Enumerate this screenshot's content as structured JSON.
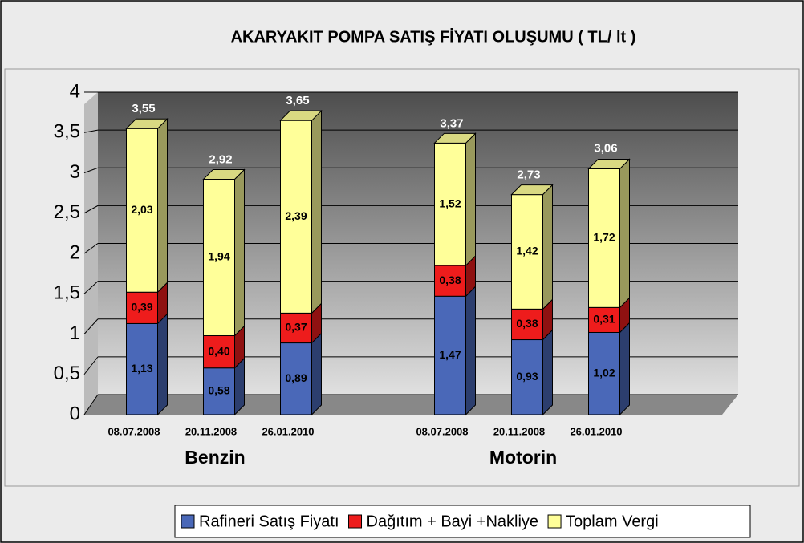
{
  "chart_data": {
    "type": "bar3d_stacked",
    "title": "AKARYAKIT POMPA SATIŞ FİYATI OLUŞUMU ( TL/ lt )",
    "categories": [
      "08.07.2008",
      "20.11.2008",
      "26.01.2010",
      "08.07.2008",
      "20.11.2008",
      "26.01.2010"
    ],
    "groups": [
      "Benzin",
      "Motorin"
    ],
    "series": [
      {
        "name": "Rafineri Satış Fiyatı",
        "color": "#4a68b8",
        "values": [
          1.13,
          0.58,
          0.89,
          1.47,
          0.93,
          1.02
        ],
        "value_labels": [
          "1,13",
          "0,58",
          "0,89",
          "1,47",
          "0,93",
          "1,02"
        ]
      },
      {
        "name": "Dağıtım + Bayi +Nakliye",
        "color": "#ee1c1c",
        "values": [
          0.39,
          0.4,
          0.37,
          0.38,
          0.38,
          0.31
        ],
        "value_labels": [
          "0,39",
          "0,40",
          "0,37",
          "0,38",
          "0,38",
          "0,31"
        ]
      },
      {
        "name": "Toplam Vergi",
        "color": "#ffff99",
        "values": [
          2.03,
          1.94,
          2.39,
          1.52,
          1.42,
          1.72
        ],
        "value_labels": [
          "2,03",
          "1,94",
          "2,39",
          "1,52",
          "1,42",
          "1,72"
        ]
      }
    ],
    "totals": [
      3.55,
      2.92,
      3.65,
      3.37,
      2.73,
      3.06
    ],
    "total_labels": [
      "3,55",
      "2,92",
      "3,65",
      "3,37",
      "2,73",
      "3,06"
    ],
    "ylim": [
      0,
      4
    ],
    "yticks": [
      0,
      {
        "value": 0.5,
        "label": "0,5"
      },
      1,
      {
        "value": 1.5,
        "label": "1,5"
      },
      2,
      {
        "value": 2.5,
        "label": "2,5"
      },
      3,
      {
        "value": 3.5,
        "label": "3,5"
      },
      4
    ],
    "grid": true,
    "legend": "bottom"
  }
}
